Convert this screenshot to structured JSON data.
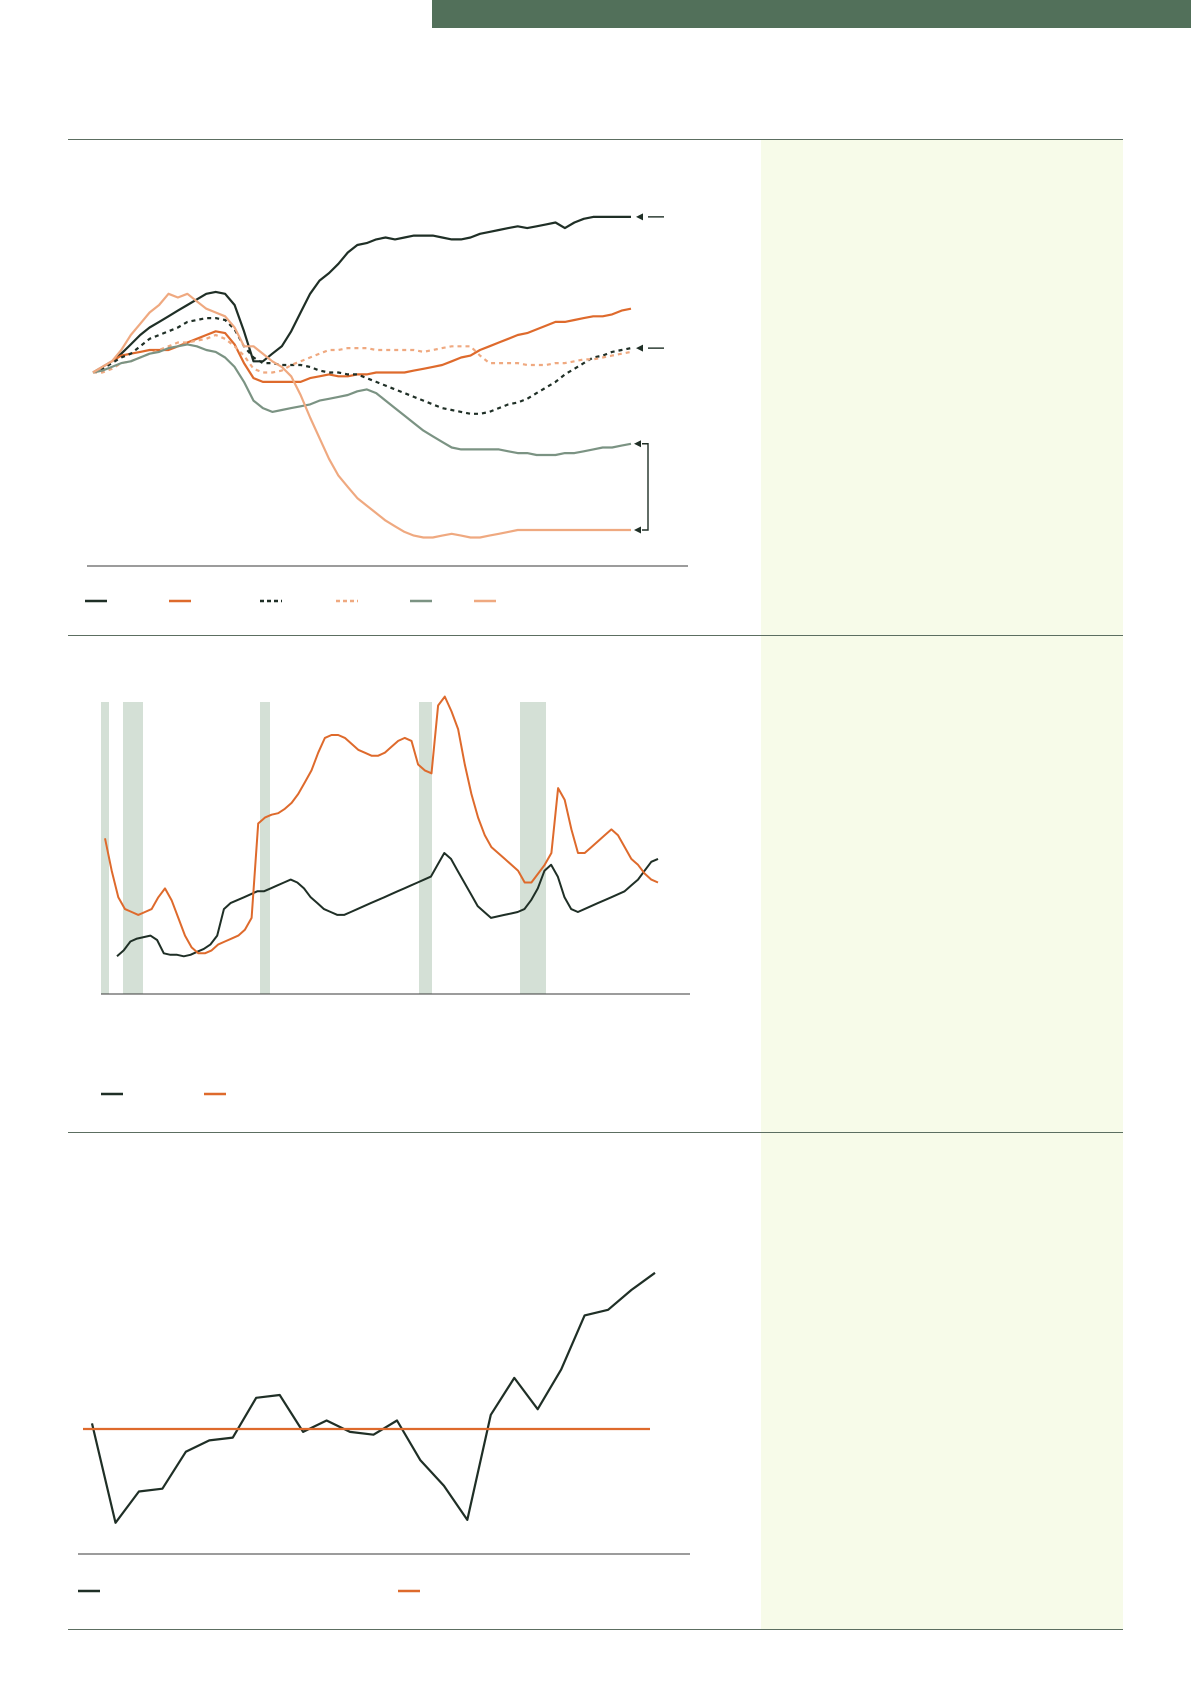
{
  "colors": {
    "banner": "#52705a",
    "frame": "#5c6e61",
    "sidebar_bg": "#f7fbe9",
    "recession_band": "#d4e0d6",
    "dark": "#1f2f26",
    "orange": "#de6a2c",
    "light_orange": "#efa980",
    "sage": "#7b9383",
    "axis": "#3a3a3a"
  },
  "chart_data": [
    {
      "type": "line",
      "x": [
        0,
        1,
        2,
        3,
        4,
        5,
        6,
        7,
        8,
        9,
        10,
        11,
        12,
        13,
        14,
        15,
        16,
        17,
        18,
        19,
        20,
        21,
        22,
        23,
        24,
        25,
        26,
        27,
        28,
        29,
        30,
        31,
        32,
        33,
        34,
        35,
        36,
        37,
        38,
        39,
        40,
        41,
        42,
        43,
        44,
        45,
        46,
        47,
        48,
        49,
        50,
        51,
        52,
        53,
        54,
        55,
        56,
        57
      ],
      "ylim": [
        0,
        100
      ],
      "legend": "bottom",
      "series": [
        {
          "style": "solid",
          "color": "dark",
          "values": [
            50,
            51.5,
            53,
            55,
            57.5,
            60,
            62,
            63.5,
            65,
            66.5,
            68,
            69.5,
            71,
            71.5,
            71,
            68,
            61,
            53,
            53,
            55,
            57,
            61,
            66,
            71,
            74.5,
            76.5,
            79,
            82,
            84,
            84.5,
            85.5,
            86,
            85.5,
            86,
            86.5,
            86.5,
            86.5,
            86,
            85.5,
            85.5,
            86,
            87,
            87.5,
            88,
            88.5,
            89,
            88.5,
            89,
            89.5,
            90,
            88.5,
            90,
            91,
            91.5,
            91.5,
            91.5,
            91.5,
            91.5
          ]
        },
        {
          "style": "solid",
          "color": "orange",
          "values": [
            50,
            51.5,
            53,
            54.5,
            55,
            55.5,
            56,
            56,
            56,
            57,
            58,
            59,
            60,
            61,
            60.5,
            57.5,
            52.5,
            48.5,
            47.5,
            47.5,
            47.5,
            47.5,
            47.5,
            48.5,
            49,
            49.5,
            49,
            49,
            49.5,
            49.5,
            50,
            50,
            50,
            50,
            50.5,
            51,
            51.5,
            52,
            53,
            54,
            54.5,
            56,
            57,
            58,
            59,
            60,
            60.5,
            61.5,
            62.5,
            63.5,
            63.5,
            64,
            64.5,
            65,
            65,
            65.5,
            66.5,
            67
          ]
        },
        {
          "style": "dashed",
          "color": "dark",
          "values": [
            50,
            51,
            52.5,
            54,
            55,
            57,
            59,
            60,
            61,
            62,
            63.5,
            64,
            64.5,
            64.5,
            64,
            61.5,
            57,
            54,
            52.5,
            52.5,
            52,
            52,
            52,
            51.5,
            50.5,
            50,
            50,
            49.5,
            49.5,
            48.5,
            47.5,
            46.5,
            45.5,
            44.5,
            43.5,
            42.5,
            41.5,
            40.5,
            40,
            39.5,
            39,
            39,
            39.5,
            40.5,
            41.5,
            42,
            43,
            44.5,
            46,
            47.5,
            49.5,
            51,
            52.5,
            54,
            54.5,
            55.5,
            56,
            56.5
          ]
        },
        {
          "style": "dashed",
          "color": "light_orange",
          "values": [
            50,
            50,
            51,
            52.5,
            53,
            54,
            55,
            56,
            57,
            58,
            58,
            58.5,
            59,
            60,
            59,
            57,
            54.5,
            51,
            50,
            50,
            50.5,
            52,
            53,
            54,
            55,
            56,
            56,
            56.5,
            56.5,
            56.5,
            56,
            56,
            56,
            56,
            56,
            55.5,
            56,
            56.5,
            57,
            57,
            57,
            54.5,
            52.5,
            52.5,
            52.5,
            52.5,
            52,
            52,
            52,
            52.5,
            52.5,
            53,
            53.5,
            53.5,
            54,
            54.5,
            55,
            55.5
          ]
        },
        {
          "style": "solid",
          "color": "sage",
          "values": [
            50,
            50.5,
            51.5,
            52.5,
            53,
            54,
            55,
            55.5,
            56.5,
            57,
            57.5,
            57,
            56,
            55.5,
            54,
            51.5,
            47.5,
            42.5,
            40.5,
            39.5,
            40,
            40.5,
            41,
            41.5,
            42.5,
            43,
            43.5,
            44,
            45,
            45.5,
            44.5,
            42.5,
            40.5,
            38.5,
            36.5,
            34.5,
            33,
            31.5,
            30,
            29.5,
            29.5,
            29.5,
            29.5,
            29.5,
            29,
            28.5,
            28.5,
            28,
            28,
            28,
            28.5,
            28.5,
            29,
            29.5,
            30,
            30,
            30.5,
            31
          ]
        },
        {
          "style": "solid",
          "color": "light_orange",
          "values": [
            50,
            51.5,
            53,
            56,
            60,
            63,
            66,
            68,
            71,
            70,
            71,
            69,
            67,
            66,
            65,
            62,
            57,
            57,
            55,
            53,
            51.5,
            49,
            44,
            38,
            32.5,
            27,
            22.5,
            19.5,
            16.5,
            14.5,
            12.5,
            10.5,
            9,
            7.5,
            6.5,
            6,
            6,
            6.5,
            7,
            6.5,
            6,
            6,
            6.5,
            7,
            7.5,
            8,
            8,
            8,
            8,
            8,
            8,
            8,
            8,
            8,
            8,
            8,
            8,
            8
          ]
        }
      ]
    },
    {
      "type": "line",
      "ylim": [
        0,
        100
      ],
      "legend": "bottom",
      "series": [
        {
          "color": "dark",
          "values": [
            5,
            7,
            10,
            11,
            11.5,
            12,
            10.5,
            6,
            5.5,
            5.5,
            5,
            5.5,
            6.5,
            7.5,
            9,
            12,
            21,
            23,
            24,
            25,
            26,
            27,
            27,
            28,
            29,
            30,
            31,
            30,
            28,
            25,
            23,
            21,
            20,
            19,
            19,
            20,
            21,
            22,
            23,
            24,
            25,
            26,
            27,
            28,
            29,
            30,
            31,
            32,
            36,
            40,
            38,
            34,
            30,
            26,
            22,
            20,
            18,
            18.5,
            19,
            19.5,
            20,
            21,
            24,
            28,
            34,
            36,
            32,
            25,
            21,
            20,
            21,
            22,
            23,
            24,
            25,
            26,
            27,
            29,
            31,
            34,
            37,
            38
          ]
        },
        {
          "color": "orange",
          "values": [
            45,
            34,
            25,
            21,
            20,
            19,
            20,
            21,
            25,
            28,
            24,
            18,
            12,
            8,
            6,
            6,
            7,
            9,
            10,
            11,
            12,
            14,
            18,
            50,
            52,
            53,
            53.5,
            55,
            57,
            60,
            64,
            68,
            74,
            79,
            80,
            80,
            79,
            77,
            75,
            74,
            73,
            73,
            74,
            76,
            78,
            79,
            78,
            70,
            68,
            67,
            90,
            93,
            88,
            82,
            70,
            60,
            52,
            46,
            42,
            40,
            38,
            36,
            34,
            30,
            30,
            33,
            36,
            40,
            62,
            58,
            48,
            40,
            40,
            42,
            44,
            46,
            48,
            46,
            42,
            38,
            36,
            33,
            31,
            30
          ]
        }
      ]
    },
    {
      "type": "line",
      "ylim": [
        0,
        100
      ],
      "legend": "bottom",
      "series": [
        {
          "color": "dark",
          "values": [
            46,
            11,
            22,
            23,
            36,
            40,
            41,
            55,
            56,
            43,
            47,
            43,
            42,
            47,
            33,
            24,
            12,
            49,
            62,
            51,
            65,
            84,
            86,
            93,
            99
          ]
        },
        {
          "color": "orange",
          "values": [
            44,
            44,
            44,
            44,
            44,
            44,
            44,
            44,
            44,
            44,
            44,
            44,
            44,
            44,
            44,
            44,
            44,
            44,
            44,
            44,
            44,
            44,
            44,
            44,
            44
          ]
        }
      ]
    }
  ]
}
